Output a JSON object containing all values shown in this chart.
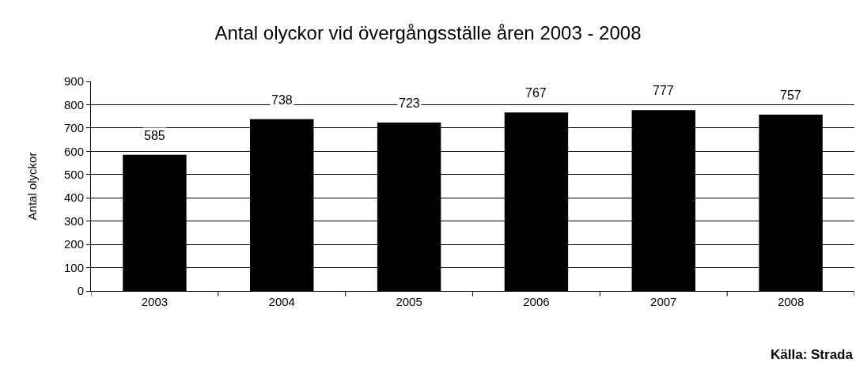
{
  "chart_data": {
    "type": "bar",
    "title": "Antal olyckor vid övergångsställe åren 2003 - 2008",
    "ylabel": "Antal olyckor",
    "categories": [
      "2003",
      "2004",
      "2005",
      "2006",
      "2007",
      "2008"
    ],
    "values": [
      585,
      738,
      723,
      767,
      777,
      757
    ],
    "color": "#000000",
    "ylim": [
      0,
      900
    ],
    "yticks": [
      0,
      100,
      200,
      300,
      400,
      500,
      600,
      700,
      800,
      900
    ],
    "grid": "y",
    "data_labels": true,
    "annotations": [
      "Källa: Strada"
    ]
  }
}
